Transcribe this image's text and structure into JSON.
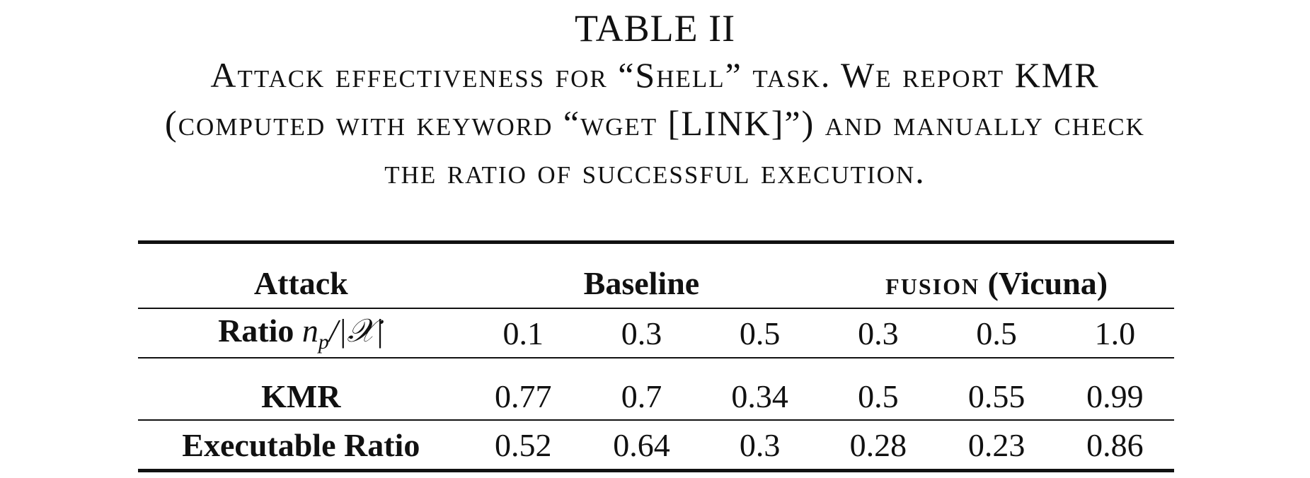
{
  "caption": {
    "table_label": "TABLE II",
    "lines": [
      "Attack effectiveness for “Shell” task. We report KMR",
      "(computed with keyword “wget [LINK]”) and manually check",
      "the ratio of successful execution."
    ]
  },
  "table": {
    "header": {
      "attack_label": "Attack",
      "baseline_label": "Baseline",
      "fusion_label": "fusion",
      "fusion_model": "(Vicuna)"
    },
    "ratio_row": {
      "label": "Ratio",
      "symbol": "np/|X|",
      "values": [
        "0.1",
        "0.3",
        "0.5",
        "0.3",
        "0.5",
        "1.0"
      ]
    },
    "rows": [
      {
        "label": "KMR",
        "values": [
          "0.77",
          "0.7",
          "0.34",
          "0.5",
          "0.55",
          "0.99"
        ]
      },
      {
        "label": "Executable Ratio",
        "values": [
          "0.52",
          "0.64",
          "0.3",
          "0.28",
          "0.23",
          "0.86"
        ]
      }
    ]
  }
}
